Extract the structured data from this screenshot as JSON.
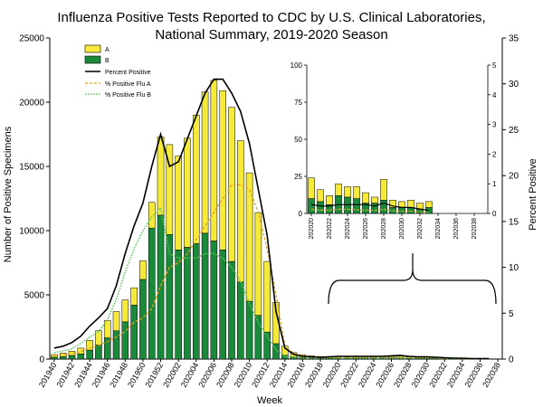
{
  "chart_data": {
    "type": "bar",
    "title_line1": "Influenza Positive Tests Reported to CDC by U.S. Clinical Laboratories,",
    "title_line2": "National Summary,  2019-2020 Season",
    "xlabel": "Week",
    "ylabel_left": "Number of Positive Specimens",
    "ylabel_right": "Percent Positive",
    "ylim_left": [
      0,
      25000
    ],
    "yticks_left": [
      0,
      5000,
      10000,
      15000,
      20000,
      25000
    ],
    "ylim_right": [
      0,
      35
    ],
    "yticks_right": [
      0,
      5,
      10,
      15,
      20,
      25,
      30,
      35
    ],
    "x_tick_labels": [
      "201940",
      "201942",
      "201944",
      "201946",
      "201948",
      "201950",
      "201952",
      "202002",
      "202004",
      "202006",
      "202008",
      "202010",
      "202012",
      "202014",
      "202016",
      "202018",
      "202020",
      "202022",
      "202024",
      "202026",
      "202028",
      "202030",
      "202032",
      "202034",
      "202036",
      "202038"
    ],
    "legend": {
      "a": "A",
      "b": "B",
      "percent_positive": "Percent Positive",
      "pct_flu_a": "% Positive Flu A",
      "pct_flu_b": "% Positive Flu B"
    },
    "colors": {
      "a": "#f5ea3c",
      "b": "#1a8a3a",
      "percent_positive": "#000000",
      "pct_flu_a": "#e0a020",
      "pct_flu_b": "#5cc85c"
    },
    "series": [
      {
        "name": "A",
        "values": [
          200,
          260,
          330,
          450,
          750,
          1100,
          1350,
          1500,
          1700,
          1350,
          1450,
          2000,
          6100,
          7000,
          7300,
          8500,
          10000,
          11000,
          12500,
          12400,
          12000,
          11000,
          10000,
          8000,
          5500,
          3200,
          700,
          350,
          230,
          170,
          130,
          120,
          110,
          100,
          105,
          105,
          100,
          110,
          120,
          150,
          130,
          100,
          90,
          85,
          60,
          40,
          25,
          15,
          10,
          10
        ]
      },
      {
        "name": "B",
        "values": [
          150,
          200,
          280,
          400,
          700,
          1100,
          1650,
          2200,
          2900,
          4200,
          6200,
          10200,
          11200,
          9700,
          8500,
          8700,
          9000,
          9800,
          9200,
          8500,
          7600,
          6000,
          4500,
          3400,
          2100,
          1200,
          300,
          150,
          100,
          80,
          70,
          70,
          70,
          65,
          70,
          70,
          70,
          80,
          75,
          80,
          70,
          65,
          60,
          55,
          40,
          30,
          20,
          10,
          5,
          5
        ]
      }
    ],
    "percent_positive": [
      1.2,
      1.4,
      1.8,
      2.5,
      3.6,
      4.5,
      5.5,
      8,
      11.5,
      14.5,
      17,
      21,
      24.5,
      21,
      21.5,
      24,
      26.5,
      29,
      30.5,
      30.5,
      29,
      27,
      23.5,
      18.5,
      13.5,
      5.2,
      1.2,
      0.5,
      0.3,
      0.25,
      0.2,
      0.25,
      0.3,
      0.3,
      0.3,
      0.3,
      0.3,
      0.3,
      0.35,
      0.4,
      0.3,
      0.25,
      0.25,
      0.2,
      0.15,
      0.1,
      0.1,
      0.05,
      0.05,
      0.05
    ],
    "pct_flu_a": [
      0.4,
      0.5,
      0.6,
      0.8,
      1.2,
      1.5,
      1.9,
      2.4,
      3,
      4,
      4.5,
      5.5,
      8,
      10,
      10.5,
      11.5,
      13,
      14.5,
      16,
      17.5,
      19,
      19,
      18.5,
      16,
      12,
      7,
      1.5,
      0.6,
      0.4,
      0.3,
      0.25,
      0.25,
      0.25,
      0.25,
      0.25,
      0.25,
      0.25,
      0.25,
      0.25,
      0.3,
      0.25,
      0.2,
      0.2,
      0.15,
      0.1,
      0.1,
      0.05,
      0.05,
      0.05,
      0.05
    ],
    "pct_flu_b": [
      0.7,
      0.9,
      1.1,
      1.7,
      2.4,
      3,
      4.3,
      6.5,
      9.5,
      12,
      14,
      15.5,
      16.5,
      11.5,
      11,
      11,
      11,
      11.5,
      11.5,
      11,
      10,
      8.5,
      6,
      4,
      2.5,
      1,
      0.3,
      0.2,
      0.15,
      0.1,
      0.1,
      0.1,
      0.1,
      0.1,
      0.1,
      0.1,
      0.1,
      0.1,
      0.1,
      0.1,
      0.1,
      0.1,
      0.1,
      0.1,
      0.05,
      0.05,
      0.05,
      0.05,
      0.05,
      0.05
    ],
    "inset": {
      "ylim_left": [
        0,
        100
      ],
      "yticks_left": [
        0,
        25,
        50,
        75,
        100
      ],
      "ylim_right": [
        0,
        5
      ],
      "yticks_right": [
        0,
        1,
        2,
        3,
        4,
        5
      ],
      "x_tick_labels": [
        "202020",
        "202022",
        "202024",
        "202026",
        "202028",
        "202030",
        "202032",
        "202034",
        "202036",
        "202038"
      ],
      "series": [
        {
          "name": "A",
          "values": [
            14,
            8,
            6,
            8,
            7,
            8,
            7,
            4,
            14,
            5,
            4,
            5,
            4,
            4,
            0,
            0,
            0,
            0,
            0
          ]
        },
        {
          "name": "B",
          "values": [
            10,
            8,
            6,
            12,
            11,
            10,
            7,
            7,
            9,
            4,
            4,
            4,
            3,
            4,
            0,
            0,
            0,
            0,
            0
          ]
        }
      ],
      "percent_positive": [
        0.3,
        0.25,
        0.25,
        0.3,
        0.3,
        0.3,
        0.3,
        0.25,
        0.35,
        0.25,
        0.2,
        0.2,
        0.15,
        0.1,
        0,
        0,
        0,
        0,
        0
      ],
      "pct_flu_a": [
        0.15,
        0.12,
        0.12,
        0.14,
        0.14,
        0.13,
        0.12,
        0.1,
        0.15,
        0.1,
        0.08,
        0.08,
        0.06,
        0.05,
        0,
        0,
        0,
        0,
        0
      ],
      "pct_flu_b": [
        0.12,
        0.1,
        0.1,
        0.14,
        0.14,
        0.12,
        0.1,
        0.1,
        0.12,
        0.08,
        0.07,
        0.07,
        0.05,
        0.04,
        0,
        0,
        0,
        0,
        0
      ]
    }
  }
}
